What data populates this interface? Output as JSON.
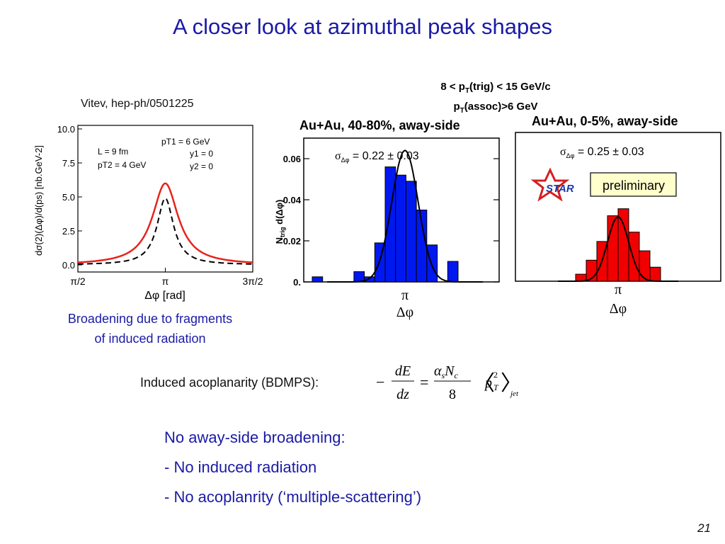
{
  "title": "A closer look at azimuthal peak shapes",
  "vitev_reference": "Vitev, hep-ph/0501225",
  "trigger_line1": "8 < p",
  "trigger_line1_sub": "T",
  "trigger_line1_rest": "(trig) < 15 GeV/c",
  "trigger_line2": "p",
  "trigger_line2_sub": "T",
  "trigger_line2_rest": "(assoc)>6 GeV",
  "caption_line1": "Broadening due to fragments",
  "caption_line2": "of induced radiation",
  "induced_label": "Induced acoplanarity (BDMPS):",
  "formula": {
    "minus": "−",
    "num_left": "dE",
    "den_left": "dz",
    "equals": "=",
    "alpha": "α",
    "sub_s": "s",
    "N": "N",
    "sub_c": "c",
    "den_right": "8",
    "langle": "〈",
    "p": "p",
    "sup_2": "2",
    "sub_T": "T",
    "rangle": "〉",
    "jet": "jet"
  },
  "bullets": {
    "heading": "No away-side broadening:",
    "item1": "- No induced radiation",
    "item2": "- No acoplanrity (‘multiple-scattering’)"
  },
  "page_number": "21",
  "colors": {
    "title": "#1a1aa6",
    "red_curve": "#e8231a",
    "blue_hist": "#0018f0",
    "red_hist": "#f00000"
  },
  "chart_data": [
    {
      "type": "line",
      "x_tick_labels": [
        "π/2",
        "π",
        "3π/2"
      ],
      "xlabel": "Δφ [rad]",
      "ylabel": "dσ(2)(Δφ)/d(ps) [nb.GeV-2]",
      "y_ticks": [
        "0.0",
        "2.5",
        "5.0",
        "7.5",
        "10.0"
      ],
      "ylim": [
        0,
        10
      ],
      "legend_left": [
        "L = 9 fm",
        "pT2 = 4 GeV"
      ],
      "legend_right": [
        "pT1 = 6 GeV",
        "y1 = 0",
        "y2 = 0"
      ],
      "series": [
        {
          "style": "solid",
          "color": "#e8231a",
          "peak": 6.0,
          "width_rad": 0.28
        },
        {
          "style": "dashed",
          "color": "#000000",
          "peak": 4.9,
          "width_rad": 0.18
        }
      ]
    },
    {
      "type": "bar",
      "title": "Au+Au, 40-80%, away-side",
      "annotation": "σΔφ = 0.22 ± 0.03",
      "sigma_label": "σ",
      "sigma_sub": "Δφ",
      "sigma_value": " = 0.22 ± 0.03",
      "ylabel": "Ntrig d(Δφ)",
      "ylabel_main": "N",
      "ylabel_sub": "trig",
      "ylabel_rest": " d(Δφ)",
      "y_ticks": [
        "0.",
        "0.02",
        "0.04",
        "0.06"
      ],
      "ylim": [
        0,
        0.07
      ],
      "x_label_pi": "π",
      "xlabel": "Δφ",
      "color": "#0018f0",
      "values": [
        0.0025,
        0,
        0,
        0,
        0.005,
        0.0025,
        0.019,
        0.056,
        0.052,
        0.049,
        0.035,
        0.018,
        0,
        0.01
      ],
      "fit_sigma": 0.22,
      "fit_peak": 0.064
    },
    {
      "type": "bar",
      "title": "Au+Au, 0-5%, away-side",
      "annotation": "σΔφ = 0.25 ± 0.03",
      "sigma_label": "σ",
      "sigma_sub": "Δφ",
      "sigma_value": " = 0.25 ± 0.03",
      "badge": "preliminary",
      "logo": "STAR",
      "x_label_pi": "π",
      "xlabel": "Δφ",
      "color": "#f00000",
      "values": [
        0.003,
        0.009,
        0.017,
        0.028,
        0.031,
        0.021,
        0.013,
        0.006
      ],
      "fit_sigma": 0.25,
      "fit_peak": 0.0275
    }
  ]
}
